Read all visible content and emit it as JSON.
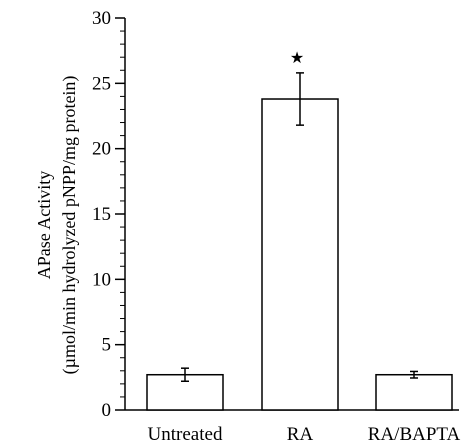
{
  "chart_data": {
    "type": "bar",
    "title": "",
    "ylabel_lines": [
      "APase Activity",
      "(µmol/min hydrolyzed pNPP/mg protein)"
    ],
    "xlabel": "",
    "categories": [
      "Untreated",
      "RA",
      "RA/BAPTA"
    ],
    "values": [
      2.7,
      23.8,
      2.7
    ],
    "errors": [
      0.5,
      2.0,
      0.25
    ],
    "ylim": [
      0,
      30
    ],
    "yticks": [
      0,
      5,
      10,
      15,
      20,
      25,
      30
    ],
    "minor_tick_step": 1,
    "grid": false,
    "significance_marker": {
      "category": "RA",
      "symbol": "★"
    },
    "colors": {
      "bar_fill": "#ffffff",
      "bar_stroke": "#000000"
    }
  }
}
